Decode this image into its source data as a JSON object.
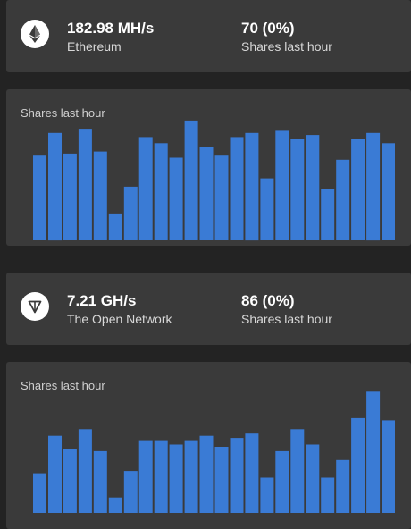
{
  "colors": {
    "background": "#232323",
    "panel": "#3a3a3a",
    "bar": "#3a7bd5"
  },
  "coins": [
    {
      "icon": "ethereum-icon",
      "hashrate": "182.98 MH/s",
      "name": "Ethereum",
      "shares_value": "70 (0%)",
      "shares_label": "Shares last hour",
      "chart_title": "Shares last hour"
    },
    {
      "icon": "toncoin-icon",
      "hashrate": "7.21 GH/s",
      "name": "The Open Network",
      "shares_value": "86 (0%)",
      "shares_label": "Shares last hour",
      "chart_title": "Shares last hour"
    }
  ],
  "chart_data": [
    {
      "type": "bar",
      "title": "Shares last hour",
      "values": [
        4.1,
        5.2,
        4.2,
        5.4,
        4.3,
        1.3,
        2.6,
        5.0,
        4.7,
        4.0,
        5.8,
        4.5,
        4.1,
        5.0,
        5.2,
        3.0,
        5.3,
        4.9,
        5.1,
        2.5,
        3.9,
        4.9,
        5.2,
        4.7
      ],
      "ylim": [
        0,
        6.4
      ]
    },
    {
      "type": "bar",
      "title": "Shares last hour",
      "values": [
        1.8,
        3.5,
        2.9,
        3.8,
        2.8,
        0.7,
        1.9,
        3.3,
        3.3,
        3.1,
        3.3,
        3.5,
        3.0,
        3.4,
        3.6,
        1.6,
        2.8,
        3.8,
        3.1,
        1.6,
        2.4,
        4.3,
        5.5,
        4.2
      ],
      "ylim": [
        0,
        6.0
      ]
    }
  ]
}
